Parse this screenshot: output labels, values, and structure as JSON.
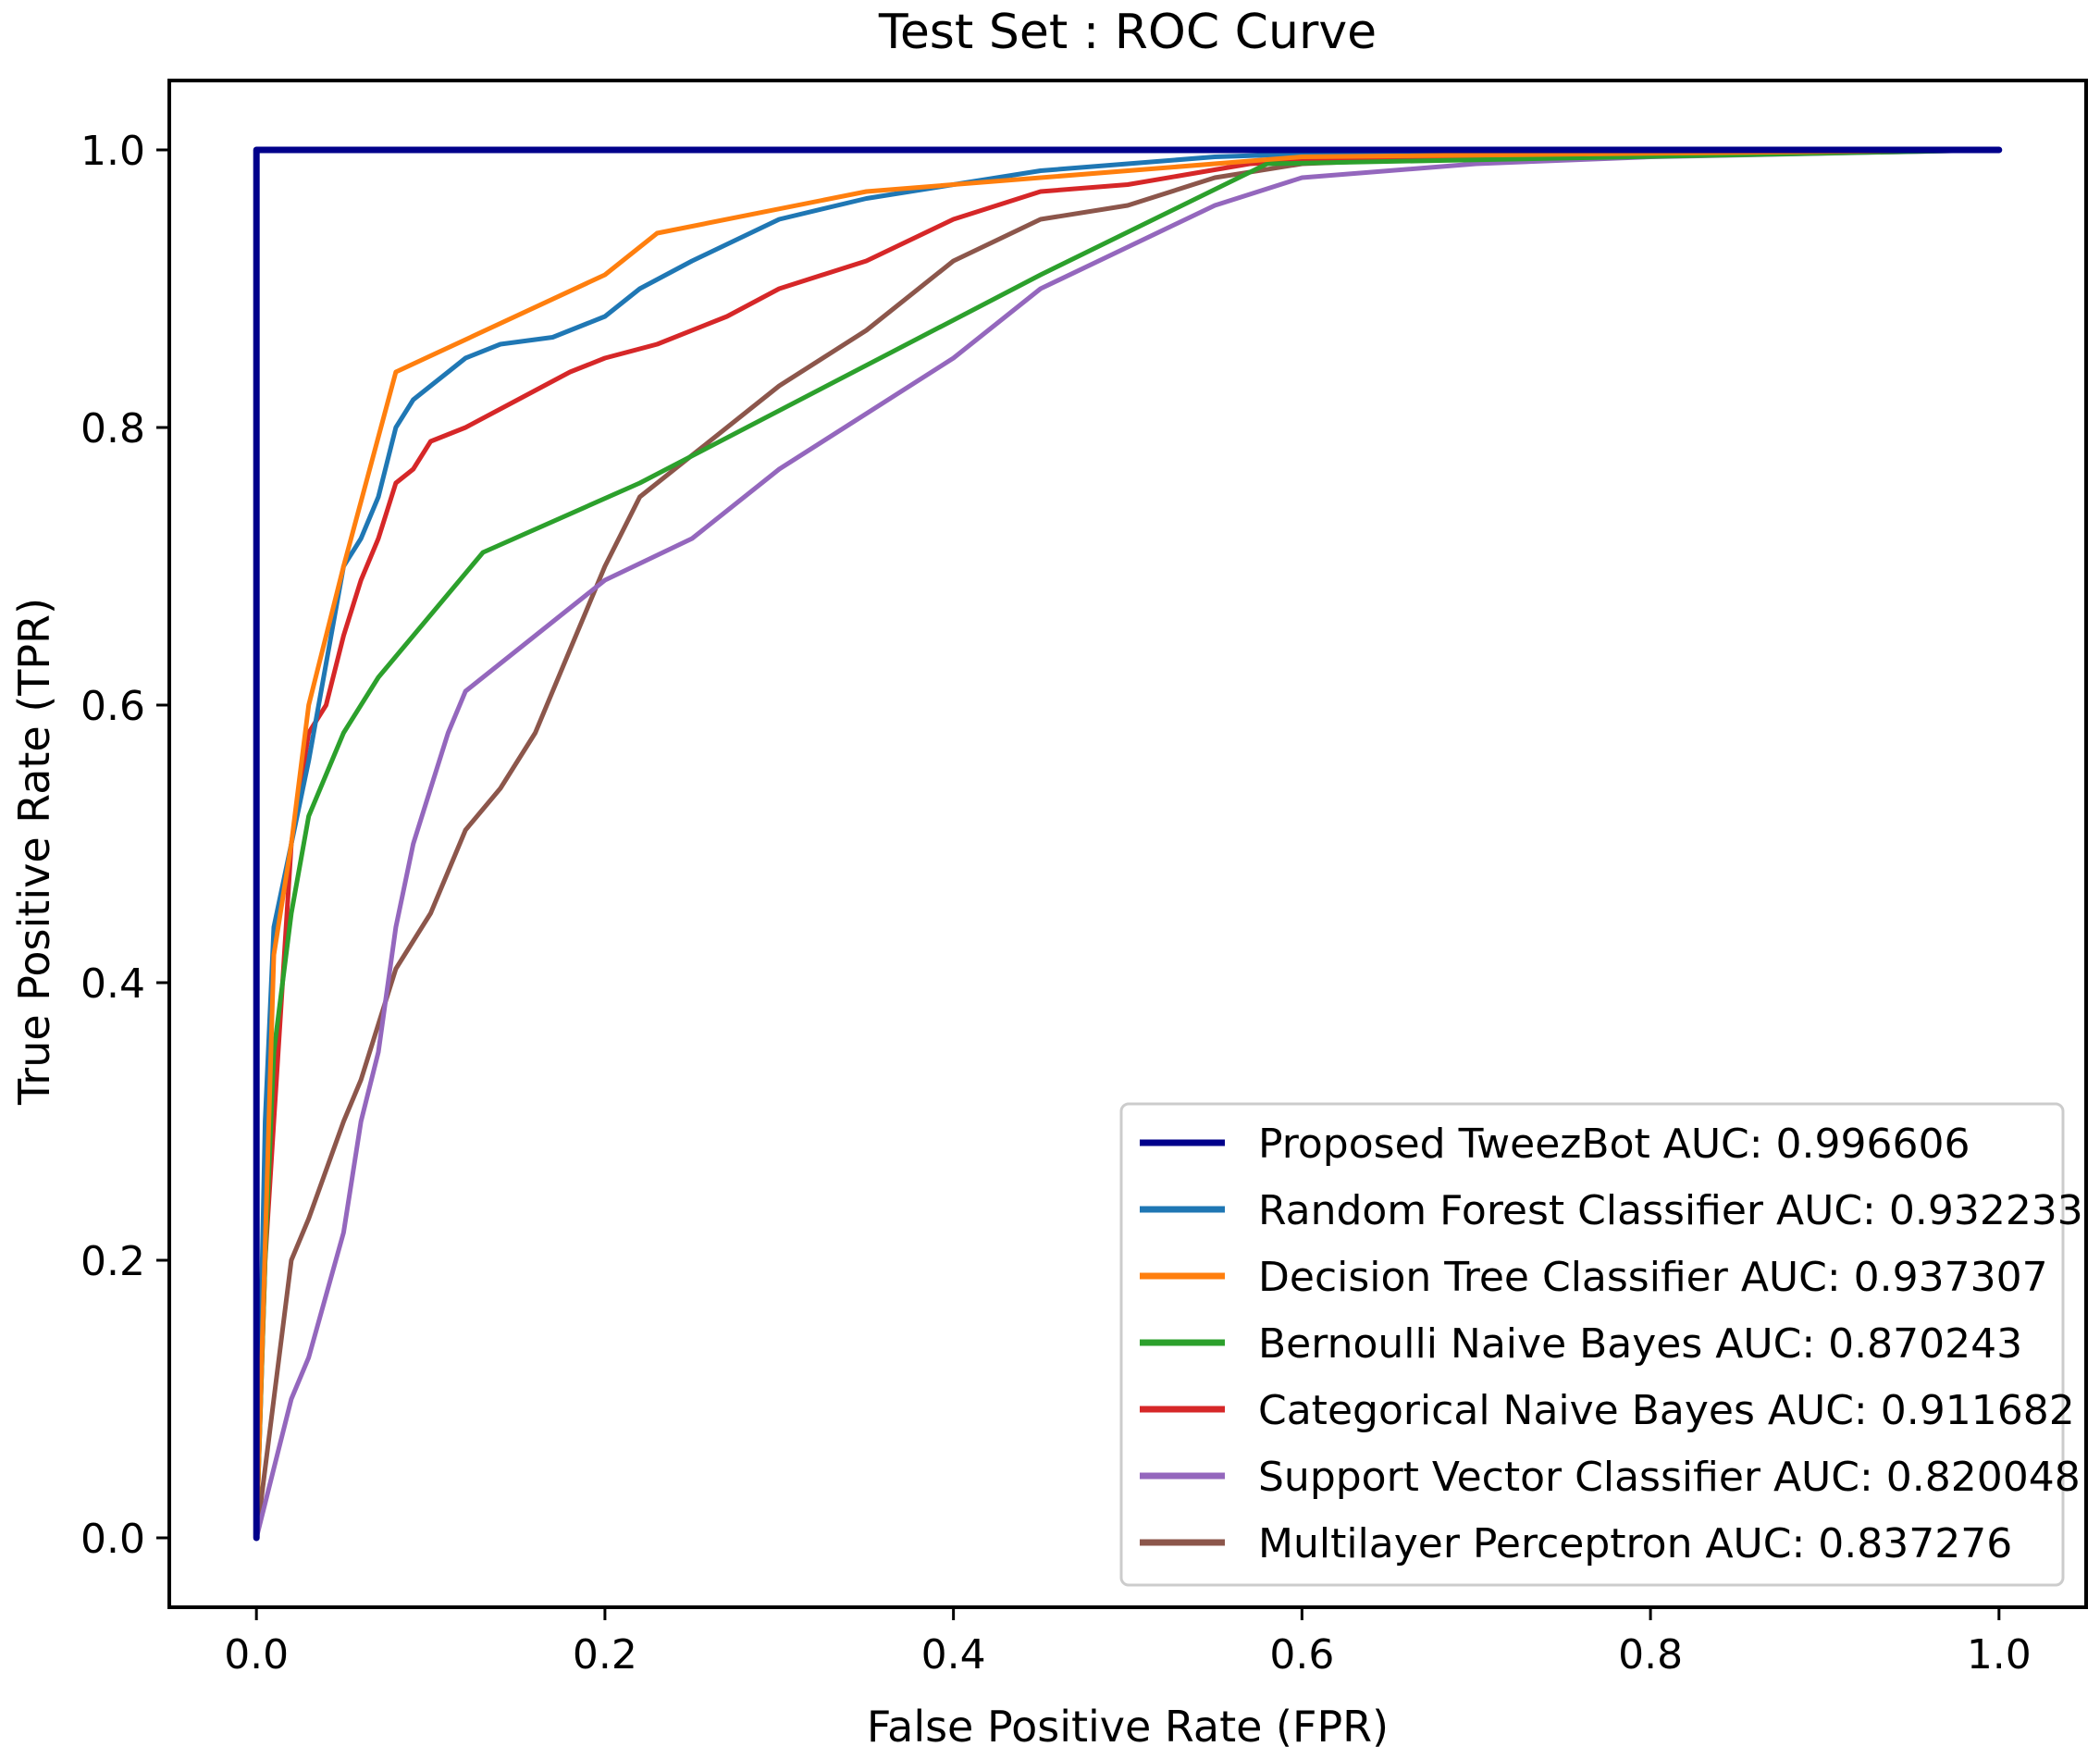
{
  "chart_data": {
    "type": "line",
    "title": "Test Set : ROC Curve",
    "xlabel": "False Positive Rate (FPR)",
    "ylabel": "True Positive Rate (TPR)",
    "xlim": [
      -0.05,
      1.05
    ],
    "ylim": [
      -0.05,
      1.05
    ],
    "xticks": [
      0.0,
      0.2,
      0.4,
      0.6,
      0.8,
      1.0
    ],
    "yticks": [
      0.0,
      0.2,
      0.4,
      0.6,
      0.8,
      1.0
    ],
    "xtick_labels": [
      "0.0",
      "0.2",
      "0.4",
      "0.6",
      "0.8",
      "1.0"
    ],
    "ytick_labels": [
      "0.0",
      "0.2",
      "0.4",
      "0.6",
      "0.8",
      "1.0"
    ],
    "grid": false,
    "legend_position": "lower-right",
    "series": [
      {
        "name": "Proposed TweezBot AUC: 0.996606",
        "color": "#00008b",
        "x": [
          0.0,
          0.0,
          1.0
        ],
        "y": [
          0.0,
          1.0,
          1.0
        ]
      },
      {
        "name": "Random Forest Classifier AUC: 0.932233",
        "color": "#1f77b4",
        "x": [
          0.0,
          0.005,
          0.01,
          0.02,
          0.03,
          0.04,
          0.05,
          0.06,
          0.07,
          0.08,
          0.09,
          0.1,
          0.11,
          0.12,
          0.14,
          0.17,
          0.2,
          0.22,
          0.25,
          0.3,
          0.35,
          0.4,
          0.45,
          0.5,
          0.55,
          0.6,
          0.7,
          0.8,
          1.0
        ],
        "y": [
          0.0,
          0.3,
          0.44,
          0.5,
          0.56,
          0.63,
          0.7,
          0.72,
          0.75,
          0.8,
          0.82,
          0.83,
          0.84,
          0.85,
          0.86,
          0.865,
          0.88,
          0.9,
          0.92,
          0.95,
          0.965,
          0.975,
          0.985,
          0.99,
          0.995,
          0.997,
          0.999,
          1.0,
          1.0
        ]
      },
      {
        "name": "Decision Tree Classifier AUC: 0.937307",
        "color": "#ff7f0e",
        "x": [
          0.0,
          0.01,
          0.02,
          0.03,
          0.05,
          0.08,
          0.2,
          0.23,
          0.35,
          0.6,
          1.0
        ],
        "y": [
          0.0,
          0.42,
          0.5,
          0.6,
          0.7,
          0.84,
          0.91,
          0.94,
          0.97,
          0.995,
          1.0
        ]
      },
      {
        "name": "Bernoulli Naive Bayes AUC: 0.870243",
        "color": "#2ca02c",
        "x": [
          0.0,
          0.005,
          0.01,
          0.02,
          0.03,
          0.05,
          0.07,
          0.13,
          0.22,
          0.45,
          0.58,
          1.0
        ],
        "y": [
          0.0,
          0.2,
          0.35,
          0.45,
          0.52,
          0.58,
          0.62,
          0.71,
          0.76,
          0.91,
          0.99,
          1.0
        ]
      },
      {
        "name": "Categorical Naive Bayes AUC: 0.911682",
        "color": "#d62728",
        "x": [
          0.0,
          0.005,
          0.01,
          0.02,
          0.03,
          0.04,
          0.05,
          0.06,
          0.07,
          0.08,
          0.09,
          0.1,
          0.12,
          0.15,
          0.18,
          0.2,
          0.23,
          0.27,
          0.3,
          0.35,
          0.4,
          0.45,
          0.5,
          0.57,
          0.65,
          0.8,
          1.0
        ],
        "y": [
          0.0,
          0.2,
          0.3,
          0.5,
          0.58,
          0.6,
          0.65,
          0.69,
          0.72,
          0.76,
          0.77,
          0.79,
          0.8,
          0.82,
          0.84,
          0.85,
          0.86,
          0.88,
          0.9,
          0.92,
          0.95,
          0.97,
          0.975,
          0.99,
          0.995,
          0.999,
          1.0
        ]
      },
      {
        "name": "Support Vector Classifier AUC: 0.820048",
        "color": "#9467bd",
        "x": [
          0.0,
          0.01,
          0.02,
          0.03,
          0.05,
          0.06,
          0.07,
          0.08,
          0.09,
          0.1,
          0.11,
          0.12,
          0.14,
          0.16,
          0.18,
          0.2,
          0.25,
          0.3,
          0.35,
          0.4,
          0.45,
          0.5,
          0.55,
          0.6,
          0.7,
          0.8,
          1.0
        ],
        "y": [
          0.0,
          0.05,
          0.1,
          0.13,
          0.22,
          0.3,
          0.35,
          0.44,
          0.5,
          0.54,
          0.58,
          0.61,
          0.63,
          0.65,
          0.67,
          0.69,
          0.72,
          0.77,
          0.81,
          0.85,
          0.9,
          0.93,
          0.96,
          0.98,
          0.99,
          0.995,
          1.0
        ]
      },
      {
        "name": "Multilayer Perceptron AUC: 0.837276",
        "color": "#8c564b",
        "x": [
          0.0,
          0.01,
          0.02,
          0.03,
          0.05,
          0.06,
          0.07,
          0.08,
          0.1,
          0.12,
          0.14,
          0.16,
          0.18,
          0.2,
          0.22,
          0.25,
          0.3,
          0.35,
          0.4,
          0.45,
          0.5,
          0.55,
          0.6,
          0.7,
          0.8,
          1.0
        ],
        "y": [
          0.0,
          0.1,
          0.2,
          0.23,
          0.3,
          0.33,
          0.37,
          0.41,
          0.45,
          0.51,
          0.54,
          0.58,
          0.64,
          0.7,
          0.75,
          0.78,
          0.83,
          0.87,
          0.92,
          0.95,
          0.96,
          0.98,
          0.99,
          0.995,
          0.999,
          1.0
        ]
      }
    ]
  }
}
